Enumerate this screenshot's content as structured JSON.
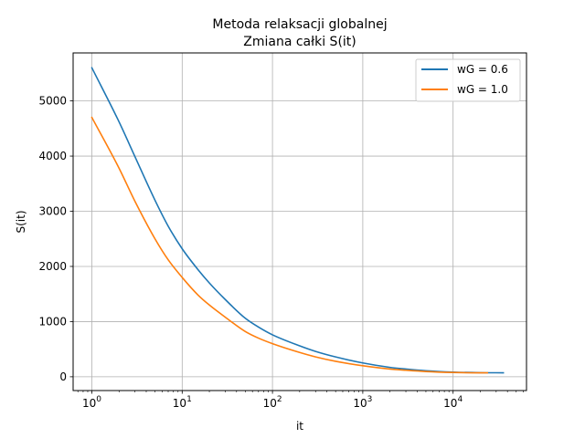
{
  "chart_data": {
    "type": "line",
    "title": "Metoda relaksacji globalnej",
    "subtitle": "Zmiana całki S(it)",
    "xlabel": "it",
    "ylabel": "S(it)",
    "xscale": "log",
    "xlim": [
      0.62,
      65000
    ],
    "ylim": [
      -250,
      5870
    ],
    "grid": true,
    "legend_position": "top-right",
    "x_ticks": [
      {
        "value": 1,
        "base": "10",
        "exp": "0"
      },
      {
        "value": 10,
        "base": "10",
        "exp": "1"
      },
      {
        "value": 100,
        "base": "10",
        "exp": "2"
      },
      {
        "value": 1000,
        "base": "10",
        "exp": "3"
      },
      {
        "value": 10000,
        "base": "10",
        "exp": "4"
      }
    ],
    "y_ticks": [
      {
        "value": 0,
        "label": "0"
      },
      {
        "value": 1000,
        "label": "1000"
      },
      {
        "value": 2000,
        "label": "2000"
      },
      {
        "value": 3000,
        "label": "3000"
      },
      {
        "value": 4000,
        "label": "4000"
      },
      {
        "value": 5000,
        "label": "5000"
      }
    ],
    "series": [
      {
        "name": "wG = 0.6",
        "color": "#1f77b4",
        "x": [
          1,
          2,
          3,
          5,
          7,
          10,
          15,
          20,
          30,
          50,
          70,
          100,
          200,
          300,
          500,
          1000,
          2000,
          3000,
          5000,
          10000,
          20000,
          36000
        ],
        "values": [
          5600,
          4620,
          3990,
          3200,
          2730,
          2320,
          1940,
          1700,
          1400,
          1060,
          900,
          760,
          560,
          460,
          360,
          250,
          170,
          140,
          110,
          85,
          74,
          72
        ]
      },
      {
        "name": "wG = 1.0",
        "color": "#ff7f0e",
        "x": [
          1,
          2,
          3,
          5,
          7,
          10,
          15,
          20,
          30,
          50,
          70,
          100,
          200,
          300,
          500,
          1000,
          2000,
          3000,
          5000,
          10000,
          20000,
          24000
        ],
        "values": [
          4700,
          3780,
          3180,
          2500,
          2120,
          1800,
          1480,
          1300,
          1080,
          820,
          700,
          600,
          440,
          360,
          280,
          200,
          140,
          118,
          95,
          78,
          72,
          72
        ]
      }
    ]
  }
}
